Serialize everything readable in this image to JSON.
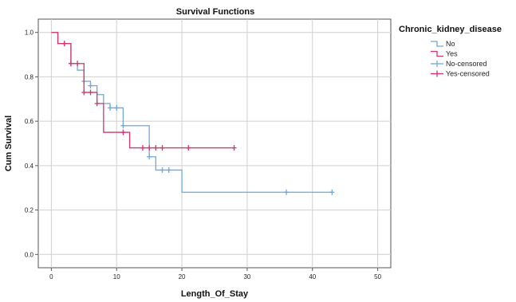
{
  "chart_data": {
    "type": "line",
    "subtype": "kaplan-meier-step",
    "title": "Survival Functions",
    "xlabel": "Length_Of_Stay",
    "ylabel": "Cum Survival",
    "xlim": [
      -2,
      52
    ],
    "ylim": [
      -0.06,
      1.06
    ],
    "x_ticks": [
      0,
      10,
      20,
      30,
      40,
      50
    ],
    "y_ticks": [
      0.0,
      0.2,
      0.4,
      0.6,
      0.8,
      1.0
    ],
    "x_tick_labels": [
      "0",
      "10",
      "20",
      "30",
      "40",
      "50"
    ],
    "y_tick_labels": [
      "0.0",
      "0.2",
      "0.4",
      "0.6",
      "0.8",
      "1.0"
    ],
    "grid": true,
    "legend_position": "right",
    "legend_title": "Chronic_kidney_disease",
    "legend": [
      {
        "label": "No",
        "kind": "line",
        "color": "#6fa8dc"
      },
      {
        "label": "Yes",
        "kind": "line",
        "color": "#d6336c"
      },
      {
        "label": "No-censored",
        "kind": "cross",
        "color": "#6fa8dc"
      },
      {
        "label": "Yes-censored",
        "kind": "cross",
        "color": "#d6336c"
      }
    ],
    "series": [
      {
        "name": "No",
        "color": "#6fa8dc",
        "x": [
          0,
          1,
          2,
          3,
          4,
          5,
          6,
          7,
          8,
          9,
          11,
          15,
          16,
          20,
          43
        ],
        "y": [
          1.0,
          0.95,
          0.95,
          0.86,
          0.83,
          0.78,
          0.76,
          0.72,
          0.68,
          0.66,
          0.58,
          0.44,
          0.38,
          0.28,
          0.28
        ],
        "censored": [
          {
            "x": 2,
            "y": 0.95
          },
          {
            "x": 3,
            "y": 0.86
          },
          {
            "x": 5,
            "y": 0.78
          },
          {
            "x": 6,
            "y": 0.76
          },
          {
            "x": 9,
            "y": 0.66
          },
          {
            "x": 10,
            "y": 0.66
          },
          {
            "x": 11,
            "y": 0.58
          },
          {
            "x": 15,
            "y": 0.44
          },
          {
            "x": 17,
            "y": 0.38
          },
          {
            "x": 18,
            "y": 0.38
          },
          {
            "x": 36,
            "y": 0.28
          },
          {
            "x": 43,
            "y": 0.28
          }
        ]
      },
      {
        "name": "Yes",
        "color": "#d6336c",
        "x": [
          0,
          1,
          3,
          5,
          7,
          8,
          12,
          28
        ],
        "y": [
          1.0,
          0.95,
          0.86,
          0.73,
          0.68,
          0.55,
          0.48,
          0.48
        ],
        "censored": [
          {
            "x": 2,
            "y": 0.95
          },
          {
            "x": 3,
            "y": 0.86
          },
          {
            "x": 4,
            "y": 0.86
          },
          {
            "x": 5,
            "y": 0.73
          },
          {
            "x": 6,
            "y": 0.73
          },
          {
            "x": 7,
            "y": 0.68
          },
          {
            "x": 11,
            "y": 0.55
          },
          {
            "x": 14,
            "y": 0.48
          },
          {
            "x": 15,
            "y": 0.48
          },
          {
            "x": 16,
            "y": 0.48
          },
          {
            "x": 17,
            "y": 0.48
          },
          {
            "x": 21,
            "y": 0.48
          },
          {
            "x": 28,
            "y": 0.48
          }
        ]
      }
    ]
  }
}
